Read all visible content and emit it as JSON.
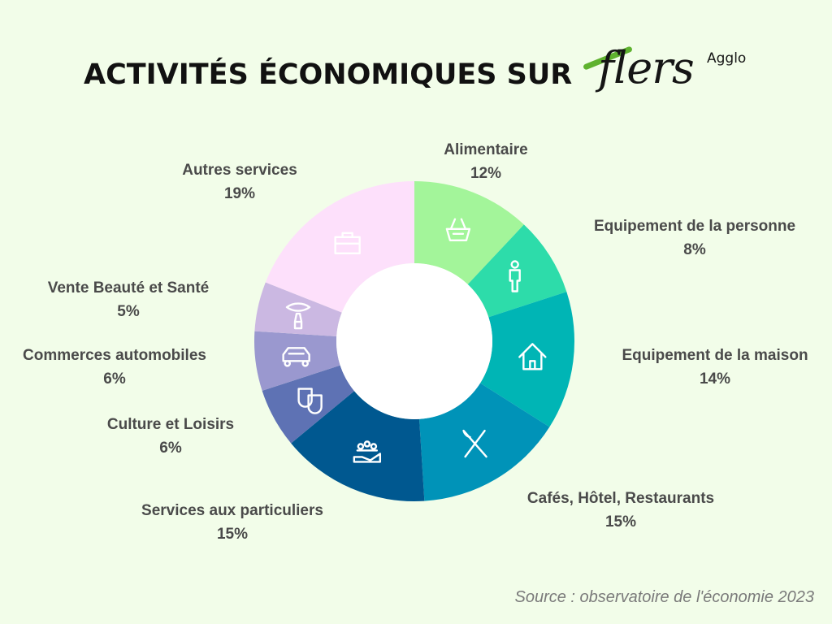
{
  "title": "ACTIVITÉS ÉCONOMIQUES SUR",
  "logo": {
    "word": "flers",
    "suffix": "Agglo"
  },
  "source": "Source : observatoire de l'économie 2023",
  "chart_data": {
    "type": "pie",
    "donut": true,
    "categories": [
      "Alimentaire",
      "Equipement de la personne",
      "Equipement de la maison",
      "Cafés, Hôtel, Restaurants",
      "Services aux particuliers",
      "Culture et Loisirs",
      "Commerces automobiles",
      "Vente Beauté et Santé",
      "Autres services"
    ],
    "values": [
      12,
      8,
      14,
      15,
      15,
      6,
      6,
      5,
      19
    ],
    "value_labels": [
      "12%",
      "8%",
      "14%",
      "15%",
      "15%",
      "6%",
      "6%",
      "5%",
      "19%"
    ],
    "colors": [
      "#a3f59a",
      "#2ddcaa",
      "#00b5b5",
      "#0093b8",
      "#005890",
      "#5e72b4",
      "#9a98cf",
      "#cbb8e2",
      "#fde0fb"
    ],
    "icons": [
      "basket-icon",
      "person-icon",
      "house-icon",
      "cutlery-icon",
      "people-hand-icon",
      "theater-masks-icon",
      "car-icon",
      "lipstick-icon",
      "briefcase-icon"
    ]
  }
}
